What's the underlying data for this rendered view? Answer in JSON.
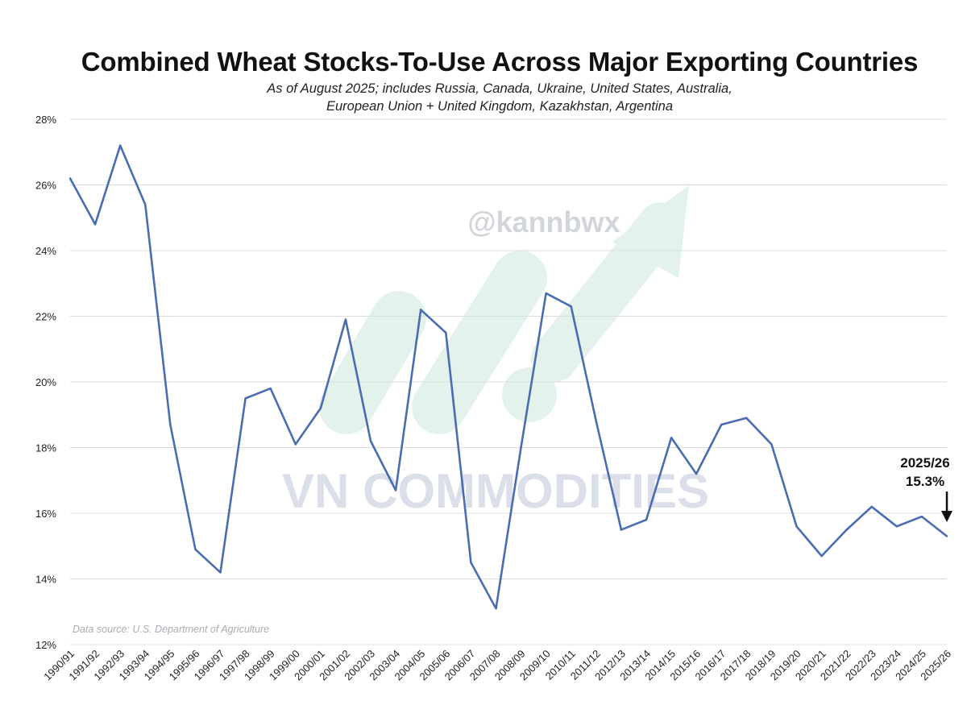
{
  "chart_data": {
    "type": "line",
    "title": "Combined Wheat Stocks-To-Use Across Major Exporting Countries",
    "subtitle_lines": [
      "As of August 2025; includes Russia, Canada, Ukraine, United States, Australia,",
      "European Union + United Kingdom, Kazakhstan, Argentina"
    ],
    "source": "Data source: U.S. Department of Agriculture",
    "watermarks": [
      "@kannbwx",
      "VN COMMODITIES"
    ],
    "ylim": [
      12,
      28
    ],
    "ytick_values": [
      12,
      14,
      16,
      18,
      20,
      22,
      24,
      26,
      28
    ],
    "ytick_labels": [
      "12%",
      "14%",
      "16%",
      "18%",
      "20%",
      "22%",
      "24%",
      "26%",
      "28%"
    ],
    "grid": "horizontal",
    "line_color": "#4a6cb3",
    "categories": [
      "1990/91",
      "1991/92",
      "1992/93",
      "1993/94",
      "1994/95",
      "1995/96",
      "1996/97",
      "1997/98",
      "1998/99",
      "1999/00",
      "2000/01",
      "2001/02",
      "2002/03",
      "2003/04",
      "2004/05",
      "2005/06",
      "2006/07",
      "2007/08",
      "2008/09",
      "2009/10",
      "2010/11",
      "2011/12",
      "2012/13",
      "2013/14",
      "2014/15",
      "2015/16",
      "2016/17",
      "2017/18",
      "2018/19",
      "2019/20",
      "2020/21",
      "2021/22",
      "2022/23",
      "2023/24",
      "2024/25",
      "2025/26"
    ],
    "values": [
      26.2,
      24.8,
      27.2,
      25.4,
      18.7,
      14.9,
      14.2,
      19.5,
      19.8,
      18.1,
      19.2,
      21.9,
      18.2,
      16.7,
      22.2,
      21.5,
      14.5,
      13.1,
      18.0,
      22.7,
      22.3,
      18.8,
      15.5,
      15.8,
      18.3,
      17.2,
      18.7,
      18.9,
      18.1,
      15.6,
      14.7,
      15.5,
      16.2,
      15.6,
      15.9,
      15.3
    ],
    "annotation": {
      "label_line1": "2025/26",
      "label_line2": "15.3%",
      "category": "2025/26",
      "value": 15.3
    }
  }
}
